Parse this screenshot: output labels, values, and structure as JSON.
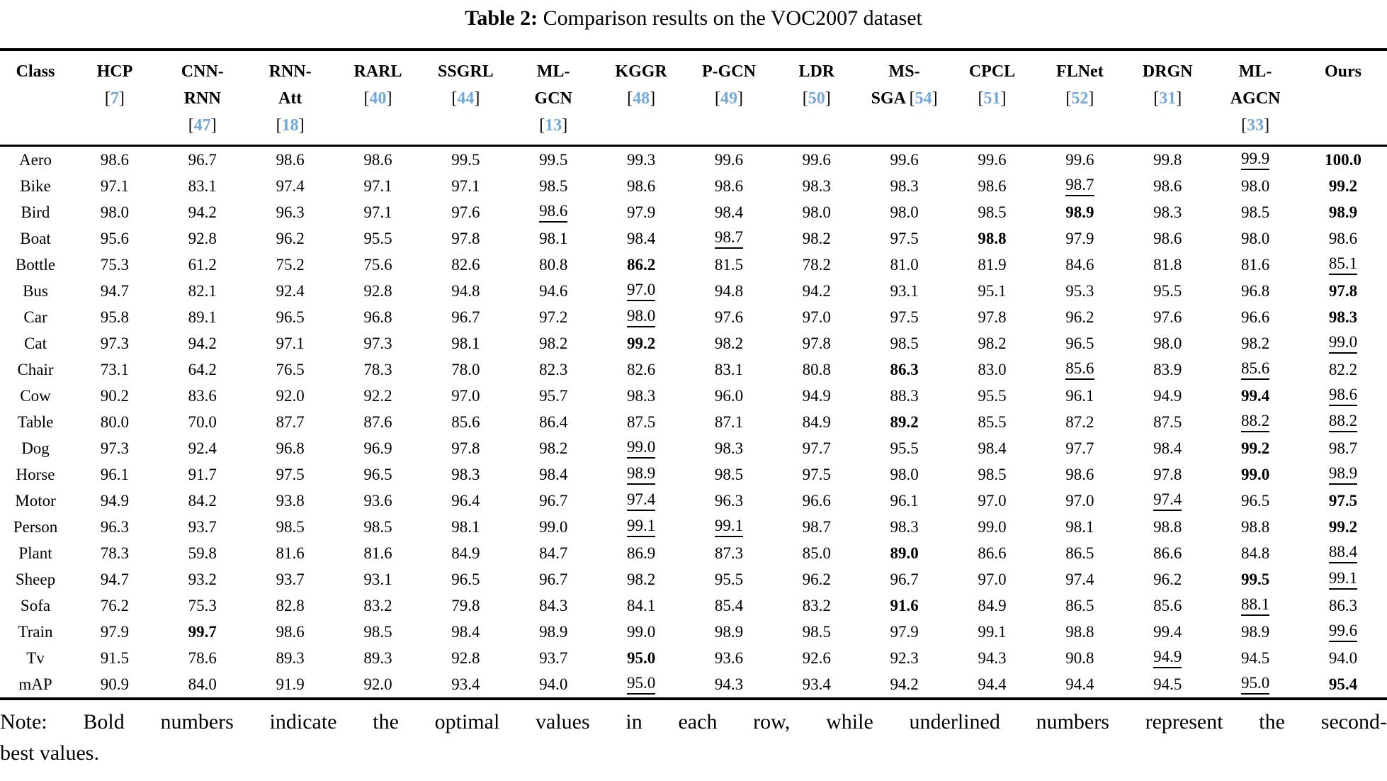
{
  "title": {
    "label": "Table 2:",
    "text": "Comparison results on the VOC2007 dataset"
  },
  "colors": {
    "citation_blue": "#6fa8dc",
    "text_black": "#000000"
  },
  "table": {
    "headers": [
      {
        "lines": [
          {
            "t": "Class"
          }
        ]
      },
      {
        "lines": [
          {
            "t": "HCP"
          },
          {
            "cite": "7"
          }
        ]
      },
      {
        "lines": [
          {
            "t": "CNN-"
          },
          {
            "t": "RNN"
          },
          {
            "cite": "47"
          }
        ]
      },
      {
        "lines": [
          {
            "t": "RNN-"
          },
          {
            "t": "Att"
          },
          {
            "cite": "18"
          }
        ]
      },
      {
        "lines": [
          {
            "t": "RARL"
          },
          {
            "cite": "40"
          }
        ]
      },
      {
        "lines": [
          {
            "t": "SSGRL"
          },
          {
            "cite": "44"
          }
        ]
      },
      {
        "lines": [
          {
            "t": "ML-"
          },
          {
            "t": "GCN"
          },
          {
            "cite": "13"
          }
        ]
      },
      {
        "lines": [
          {
            "t": "KGGR"
          },
          {
            "cite": "48"
          }
        ]
      },
      {
        "lines": [
          {
            "t": "P-GCN"
          },
          {
            "cite": "49"
          }
        ]
      },
      {
        "lines": [
          {
            "t": "LDR"
          },
          {
            "cite": "50"
          }
        ]
      },
      {
        "lines": [
          {
            "t": "MS-"
          },
          {
            "t": "SGA",
            "cite": "54"
          }
        ]
      },
      {
        "lines": [
          {
            "t": "CPCL"
          },
          {
            "cite": "51"
          }
        ]
      },
      {
        "lines": [
          {
            "t": "FLNet"
          },
          {
            "cite": "52"
          }
        ]
      },
      {
        "lines": [
          {
            "t": "DRGN"
          },
          {
            "cite": "31"
          }
        ]
      },
      {
        "lines": [
          {
            "t": "ML-"
          },
          {
            "t": "AGCN"
          },
          {
            "cite": "33"
          }
        ]
      },
      {
        "lines": [
          {
            "t": "Ours"
          }
        ]
      }
    ],
    "rows": [
      {
        "label": "Aero",
        "values": [
          "98.6",
          "96.7",
          "98.6",
          "98.6",
          "99.5",
          "99.5",
          "99.3",
          "99.6",
          "99.6",
          "99.6",
          "99.6",
          "99.6",
          "99.8",
          "99.9|u",
          "100.0|b"
        ]
      },
      {
        "label": "Bike",
        "values": [
          "97.1",
          "83.1",
          "97.4",
          "97.1",
          "97.1",
          "98.5",
          "98.6",
          "98.6",
          "98.3",
          "98.3",
          "98.6",
          "98.7|u",
          "98.6",
          "98.0",
          "99.2|b"
        ]
      },
      {
        "label": "Bird",
        "values": [
          "98.0",
          "94.2",
          "96.3",
          "97.1",
          "97.6",
          "98.6|u",
          "97.9",
          "98.4",
          "98.0",
          "98.0",
          "98.5",
          "98.9|b",
          "98.3",
          "98.5",
          "98.9|b"
        ]
      },
      {
        "label": "Boat",
        "values": [
          "95.6",
          "92.8",
          "96.2",
          "95.5",
          "97.8",
          "98.1",
          "98.4",
          "98.7|u",
          "98.2",
          "97.5",
          "98.8|b",
          "97.9",
          "98.6",
          "98.0",
          "98.6"
        ]
      },
      {
        "label": "Bottle",
        "values": [
          "75.3",
          "61.2",
          "75.2",
          "75.6",
          "82.6",
          "80.8",
          "86.2|b",
          "81.5",
          "78.2",
          "81.0",
          "81.9",
          "84.6",
          "81.8",
          "81.6",
          "85.1|u"
        ]
      },
      {
        "label": "Bus",
        "values": [
          "94.7",
          "82.1",
          "92.4",
          "92.8",
          "94.8",
          "94.6",
          "97.0|u",
          "94.8",
          "94.2",
          "93.1",
          "95.1",
          "95.3",
          "95.5",
          "96.8",
          "97.8|b"
        ]
      },
      {
        "label": "Car",
        "values": [
          "95.8",
          "89.1",
          "96.5",
          "96.8",
          "96.7",
          "97.2",
          "98.0|u",
          "97.6",
          "97.0",
          "97.5",
          "97.8",
          "96.2",
          "97.6",
          "96.6",
          "98.3|b"
        ]
      },
      {
        "label": "Cat",
        "values": [
          "97.3",
          "94.2",
          "97.1",
          "97.3",
          "98.1",
          "98.2",
          "99.2|b",
          "98.2",
          "97.8",
          "98.5",
          "98.2",
          "96.5",
          "98.0",
          "98.2",
          "99.0|u"
        ]
      },
      {
        "label": "Chair",
        "values": [
          "73.1",
          "64.2",
          "76.5",
          "78.3",
          "78.0",
          "82.3",
          "82.6",
          "83.1",
          "80.8",
          "86.3|b",
          "83.0",
          "85.6|u",
          "83.9",
          "85.6|u",
          "82.2"
        ]
      },
      {
        "label": "Cow",
        "values": [
          "90.2",
          "83.6",
          "92.0",
          "92.2",
          "97.0",
          "95.7",
          "98.3",
          "96.0",
          "94.9",
          "88.3",
          "95.5",
          "96.1",
          "94.9",
          "99.4|b",
          "98.6|u"
        ]
      },
      {
        "label": "Table",
        "values": [
          "80.0",
          "70.0",
          "87.7",
          "87.6",
          "85.6",
          "86.4",
          "87.5",
          "87.1",
          "84.9",
          "89.2|b",
          "85.5",
          "87.2",
          "87.5",
          "88.2|u",
          "88.2|u"
        ]
      },
      {
        "label": "Dog",
        "values": [
          "97.3",
          "92.4",
          "96.8",
          "96.9",
          "97.8",
          "98.2",
          "99.0|u",
          "98.3",
          "97.7",
          "95.5",
          "98.4",
          "97.7",
          "98.4",
          "99.2|b",
          "98.7"
        ]
      },
      {
        "label": "Horse",
        "values": [
          "96.1",
          "91.7",
          "97.5",
          "96.5",
          "98.3",
          "98.4",
          "98.9|u",
          "98.5",
          "97.5",
          "98.0",
          "98.5",
          "98.6",
          "97.8",
          "99.0|b",
          "98.9|u"
        ]
      },
      {
        "label": "Motor",
        "values": [
          "94.9",
          "84.2",
          "93.8",
          "93.6",
          "96.4",
          "96.7",
          "97.4|u",
          "96.3",
          "96.6",
          "96.1",
          "97.0",
          "97.0",
          "97.4|u",
          "96.5",
          "97.5|b"
        ]
      },
      {
        "label": "Person",
        "values": [
          "96.3",
          "93.7",
          "98.5",
          "98.5",
          "98.1",
          "99.0",
          "99.1|u",
          "99.1|u",
          "98.7",
          "98.3",
          "99.0",
          "98.1",
          "98.8",
          "98.8",
          "99.2|b"
        ]
      },
      {
        "label": "Plant",
        "values": [
          "78.3",
          "59.8",
          "81.6",
          "81.6",
          "84.9",
          "84.7",
          "86.9",
          "87.3",
          "85.0",
          "89.0|b",
          "86.6",
          "86.5",
          "86.6",
          "84.8",
          "88.4|u"
        ]
      },
      {
        "label": "Sheep",
        "values": [
          "94.7",
          "93.2",
          "93.7",
          "93.1",
          "96.5",
          "96.7",
          "98.2",
          "95.5",
          "96.2",
          "96.7",
          "97.0",
          "97.4",
          "96.2",
          "99.5|b",
          "99.1|u"
        ]
      },
      {
        "label": "Sofa",
        "values": [
          "76.2",
          "75.3",
          "82.8",
          "83.2",
          "79.8",
          "84.3",
          "84.1",
          "85.4",
          "83.2",
          "91.6|b",
          "84.9",
          "86.5",
          "85.6",
          "88.1|u",
          "86.3"
        ]
      },
      {
        "label": "Train",
        "values": [
          "97.9",
          "99.7|b",
          "98.6",
          "98.5",
          "98.4",
          "98.9",
          "99.0",
          "98.9",
          "98.5",
          "97.9",
          "99.1",
          "98.8",
          "99.4",
          "98.9",
          "99.6|u"
        ]
      },
      {
        "label": "Tv",
        "values": [
          "91.5",
          "78.6",
          "89.3",
          "89.3",
          "92.8",
          "93.7",
          "95.0|b",
          "93.6",
          "92.6",
          "92.3",
          "94.3",
          "90.8",
          "94.9|u",
          "94.5",
          "94.0"
        ]
      },
      {
        "label": "mAP",
        "values": [
          "90.9",
          "84.0",
          "91.9",
          "92.0",
          "93.4",
          "94.0",
          "95.0|u",
          "94.3",
          "93.4",
          "94.2",
          "94.4",
          "94.4",
          "94.5",
          "95.0|u",
          "95.4|b"
        ]
      }
    ]
  },
  "note": {
    "line1": "Note: Bold numbers indicate the optimal values in each row, while underlined numbers represent the second-",
    "line2": "best values."
  }
}
